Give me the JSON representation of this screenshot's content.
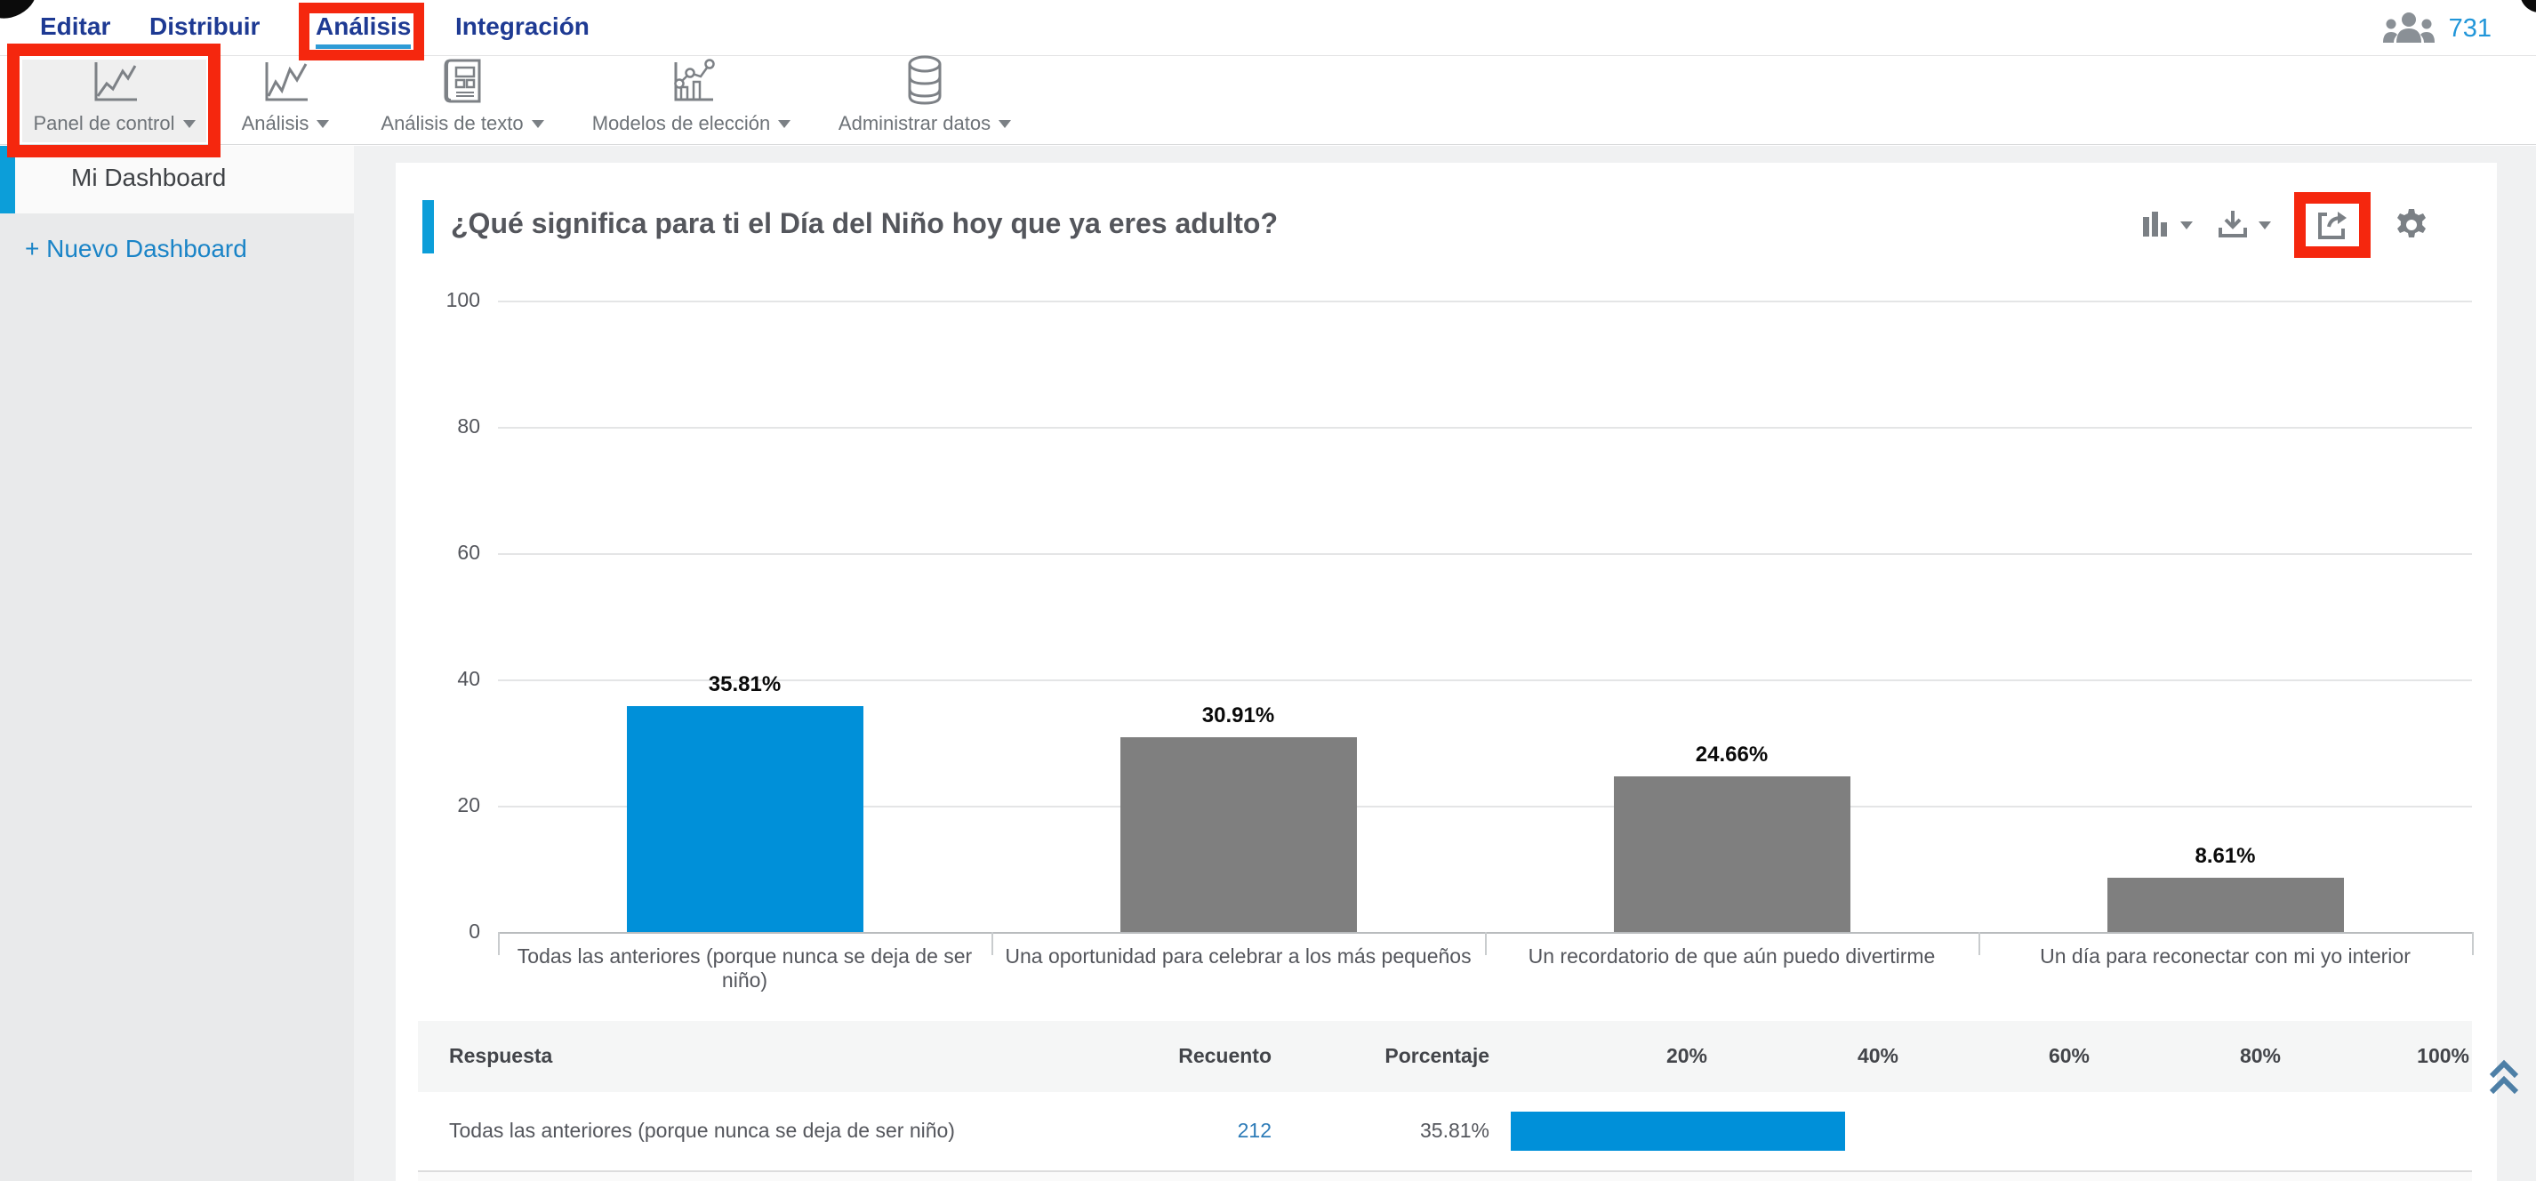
{
  "top_nav": {
    "items": [
      {
        "label": "Editar",
        "active": false
      },
      {
        "label": "Distribuir",
        "active": false
      },
      {
        "label": "Análisis",
        "active": true
      },
      {
        "label": "Integración",
        "active": false
      }
    ],
    "respondents_icon": "people-group-icon",
    "respondents_count": "731"
  },
  "toolbar": {
    "items": [
      {
        "label": "Panel de control",
        "icon": "line-chart-icon",
        "selected": true
      },
      {
        "label": "Análisis",
        "icon": "line-chart-icon",
        "selected": false
      },
      {
        "label": "Análisis de texto",
        "icon": "text-document-icon",
        "selected": false
      },
      {
        "label": "Modelos de elección",
        "icon": "choice-model-icon",
        "selected": false
      },
      {
        "label": "Administrar datos",
        "icon": "database-icon",
        "selected": false
      }
    ]
  },
  "sidebar": {
    "active_item": "Mi Dashboard",
    "new_dashboard_label": "+ Nuevo Dashboard"
  },
  "widget": {
    "title": "¿Qué significa para ti el Día del Niño hoy que ya eres adulto?",
    "controls": [
      "chart-type-icon",
      "download-icon",
      "share-export-icon",
      "gear-icon"
    ]
  },
  "chart_data": {
    "type": "bar",
    "title": "¿Qué significa para ti el Día del Niño hoy que ya eres adulto?",
    "categories": [
      "Todas las anteriores (porque nunca se deja de ser niño)",
      "Una oportunidad para celebrar a los más pequeños",
      "Un recordatorio de que aún puedo divertirme",
      "Un día para reconectar con mi yo interior"
    ],
    "values": [
      35.81,
      30.91,
      24.66,
      8.61
    ],
    "value_labels": [
      "35.81%",
      "30.91%",
      "24.66%",
      "8.61%"
    ],
    "bar_colors": [
      "#0090d9",
      "#7f7f7f",
      "#7f7f7f",
      "#7f7f7f"
    ],
    "ylabel": "",
    "xlabel": "",
    "ylim": [
      0,
      100
    ],
    "yticks": [
      0,
      20,
      40,
      60,
      80,
      100
    ],
    "grid": true,
    "legend": false
  },
  "table": {
    "columns": [
      "Respuesta",
      "Recuento",
      "Porcentaje",
      "20%",
      "40%",
      "60%",
      "80%",
      "100%"
    ],
    "rows": [
      {
        "respuesta": "Todas las anteriores (porque nunca se deja de ser niño)",
        "recuento": "212",
        "porcentaje": "35.81%",
        "bar_pct": 35.81
      }
    ]
  },
  "icons": {
    "scroll_top": "double-chevron-up-icon"
  },
  "colors": {
    "accent_blue": "#0090d9",
    "bar_gray": "#7f7f7f",
    "annotation_red": "#f5270e",
    "nav_blue": "#1e3a93",
    "link_blue": "#2e7cb8",
    "active_underline": "#2e9bd6"
  }
}
